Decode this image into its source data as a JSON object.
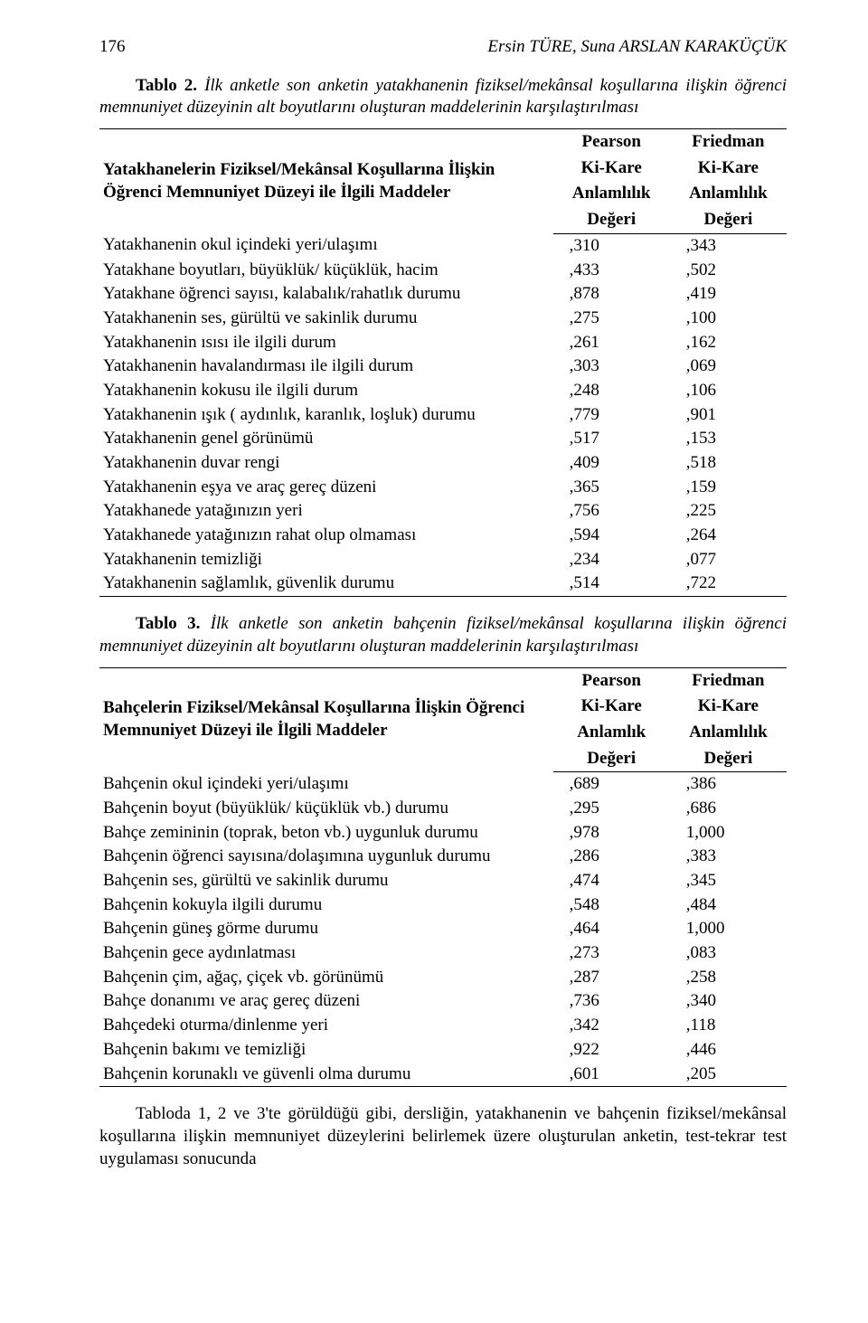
{
  "page_number": "176",
  "authors": "Ersin TÜRE, Suna ARSLAN KARAKÜÇÜK",
  "table2": {
    "caption_bold": "Tablo 2.",
    "caption_italic": " İlk anketle son anketin yatakhanenin fiziksel/mekânsal koşullarına ilişkin öğrenci memnuniyet düzeyinin alt boyutlarını oluşturan maddelerinin karşılaştırılması",
    "header_left_l1": "Yatakhanelerin Fiziksel/Mekânsal Koşullarına İlişkin",
    "header_left_l2": "Öğrenci Memnuniyet Düzeyi ile İlgili Maddeler",
    "col1_l1": "Pearson",
    "col1_l2": "Ki-Kare",
    "col1_l3": "Anlamlılık",
    "col1_l4": "Değeri",
    "col2_l1": "Friedman",
    "col2_l2": "Ki-Kare",
    "col2_l3": "Anlamlılık",
    "col2_l4": "Değeri",
    "rows": [
      {
        "label": "Yatakhanenin okul içindeki yeri/ulaşımı",
        "v1": ",310",
        "v2": ",343"
      },
      {
        "label": "Yatakhane boyutları, büyüklük/ küçüklük, hacim",
        "v1": ",433",
        "v2": ",502"
      },
      {
        "label": "Yatakhane öğrenci sayısı, kalabalık/rahatlık durumu",
        "v1": ",878",
        "v2": ",419"
      },
      {
        "label": "Yatakhanenin ses, gürültü ve sakinlik durumu",
        "v1": ",275",
        "v2": ",100"
      },
      {
        "label": "Yatakhanenin ısısı ile ilgili durum",
        "v1": ",261",
        "v2": ",162"
      },
      {
        "label": "Yatakhanenin havalandırması ile ilgili durum",
        "v1": ",303",
        "v2": ",069"
      },
      {
        "label": "Yatakhanenin kokusu ile ilgili durum",
        "v1": ",248",
        "v2": ",106"
      },
      {
        "label": "Yatakhanenin ışık ( aydınlık, karanlık, loşluk) durumu",
        "v1": ",779",
        "v2": ",901"
      },
      {
        "label": "Yatakhanenin genel görünümü",
        "v1": ",517",
        "v2": ",153"
      },
      {
        "label": "Yatakhanenin duvar rengi",
        "v1": ",409",
        "v2": ",518"
      },
      {
        "label": "Yatakhanenin eşya ve araç gereç düzeni",
        "v1": ",365",
        "v2": ",159"
      },
      {
        "label": "Yatakhanede yatağınızın yeri",
        "v1": ",756",
        "v2": ",225"
      },
      {
        "label": "Yatakhanede yatağınızın rahat olup olmaması",
        "v1": ",594",
        "v2": ",264"
      },
      {
        "label": "Yatakhanenin temizliği",
        "v1": ",234",
        "v2": ",077"
      },
      {
        "label": "Yatakhanenin sağlamlık, güvenlik durumu",
        "v1": ",514",
        "v2": ",722"
      }
    ]
  },
  "table3": {
    "caption_bold": "Tablo 3.",
    "caption_italic": " İlk anketle son anketin bahçenin fiziksel/mekânsal koşullarına ilişkin öğrenci memnuniyet düzeyinin alt boyutlarını oluşturan maddelerinin karşılaştırılması",
    "header_left_l1": "Bahçelerin Fiziksel/Mekânsal Koşullarına İlişkin Öğrenci",
    "header_left_l2": "Memnuniyet Düzeyi ile İlgili Maddeler",
    "col1_l1": "Pearson",
    "col1_l2": "Ki-Kare",
    "col1_l3": "Anlamlık",
    "col1_l4": "Değeri",
    "col2_l1": "Friedman",
    "col2_l2": "Ki-Kare",
    "col2_l3": "Anlamlılık",
    "col2_l4": "Değeri",
    "rows": [
      {
        "label": "Bahçenin okul içindeki yeri/ulaşımı",
        "v1": ",689",
        "v2": ",386"
      },
      {
        "label": "Bahçenin boyut (büyüklük/ küçüklük vb.) durumu",
        "v1": ",295",
        "v2": ",686"
      },
      {
        "label": "Bahçe zemininin (toprak, beton vb.) uygunluk durumu",
        "v1": ",978",
        "v2": "1,000"
      },
      {
        "label": "Bahçenin öğrenci sayısına/dolaşımına uygunluk durumu",
        "v1": ",286",
        "v2": ",383"
      },
      {
        "label": "Bahçenin ses, gürültü ve sakinlik durumu",
        "v1": ",474",
        "v2": ",345"
      },
      {
        "label": "Bahçenin kokuyla ilgili durumu",
        "v1": ",548",
        "v2": ",484"
      },
      {
        "label": "Bahçenin güneş görme durumu",
        "v1": ",464",
        "v2": "1,000"
      },
      {
        "label": "Bahçenin gece aydınlatması",
        "v1": ",273",
        "v2": ",083"
      },
      {
        "label": "Bahçenin çim, ağaç, çiçek vb. görünümü",
        "v1": ",287",
        "v2": ",258"
      },
      {
        "label": "Bahçe donanımı ve araç gereç düzeni",
        "v1": ",736",
        "v2": ",340"
      },
      {
        "label": "Bahçedeki oturma/dinlenme yeri",
        "v1": ",342",
        "v2": ",118"
      },
      {
        "label": "Bahçenin bakımı ve temizliği",
        "v1": ",922",
        "v2": ",446"
      },
      {
        "label": "Bahçenin korunaklı ve güvenli olma durumu",
        "v1": ",601",
        "v2": ",205"
      }
    ]
  },
  "body_text": "Tabloda 1, 2 ve 3'te görüldüğü gibi, dersliğin, yatakhanenin ve bahçenin fiziksel/mekânsal koşullarına ilişkin memnuniyet düzeylerini belirlemek üzere oluşturulan anketin, test-tekrar test uygulaması sonucunda"
}
